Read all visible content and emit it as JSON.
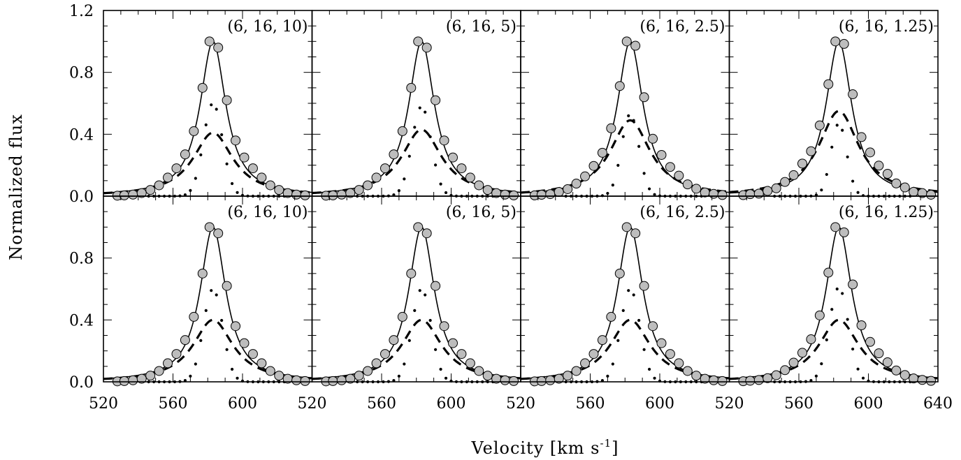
{
  "chart_data": {
    "type": "line",
    "layout": "2 rows x 4 columns of panels with shared axes",
    "xlabel": "Velocity [km s",
    "xlabel_superscript": "-1",
    "xlabel_suffix": "]",
    "ylabel": "Normalized flux",
    "xlim": [
      520,
      640
    ],
    "ylim": [
      0,
      1.2
    ],
    "x_tick_labels": [
      "520",
      "560",
      "600",
      "520",
      "560",
      "600",
      "520",
      "560",
      "600",
      "520",
      "560",
      "600",
      "640"
    ],
    "y_tick_labels_top": [
      "0.0",
      "0.4",
      "0.8",
      "1.2"
    ],
    "y_tick_labels_bottom": [
      "0.0",
      "0.4",
      "0.8"
    ],
    "marker_color": "#bdbdbd",
    "panels": [
      {
        "row": 0,
        "col": 0,
        "label": "(6, 16, 10)",
        "dashed_peak": 0.41,
        "dotted_peak": 0.6,
        "dotted_width": 5.5,
        "marker_offset": 0
      },
      {
        "row": 0,
        "col": 1,
        "label": "(6, 16, 5)",
        "dashed_peak": 0.43,
        "dotted_peak": 0.58,
        "dotted_width": 5.5,
        "marker_offset": 0
      },
      {
        "row": 0,
        "col": 2,
        "label": "(6, 16, 2.5)",
        "dashed_peak": 0.49,
        "dotted_peak": 0.53,
        "dotted_width": 5.0,
        "marker_offset": 0.02
      },
      {
        "row": 0,
        "col": 3,
        "label": "(6, 16, 1.25)",
        "dashed_peak": 0.55,
        "dotted_peak": 0.47,
        "dotted_width": 4.5,
        "marker_offset": 0.04
      },
      {
        "row": 1,
        "col": 0,
        "label": "(6, 16, 10)",
        "dashed_peak": 0.4,
        "dotted_peak": 0.6,
        "dotted_width": 5.5,
        "marker_offset": 0
      },
      {
        "row": 1,
        "col": 1,
        "label": "(6, 16, 5)",
        "dashed_peak": 0.4,
        "dotted_peak": 0.6,
        "dotted_width": 5.5,
        "marker_offset": 0
      },
      {
        "row": 1,
        "col": 2,
        "label": "(6, 16, 2.5)",
        "dashed_peak": 0.4,
        "dotted_peak": 0.6,
        "dotted_width": 5.5,
        "marker_offset": 0
      },
      {
        "row": 1,
        "col": 3,
        "label": "(6, 16, 1.25)",
        "dashed_peak": 0.4,
        "dotted_peak": 0.61,
        "dotted_width": 5.5,
        "marker_offset": 0.01
      }
    ],
    "series": [
      {
        "style": "open circles (data points)",
        "x": [
          528,
          532,
          537,
          542,
          547,
          552,
          557,
          562,
          567,
          572,
          577,
          581,
          586,
          591,
          596,
          601,
          606,
          611,
          616,
          621,
          626,
          631,
          636
        ],
        "y": [
          0.003,
          0.005,
          0.01,
          0.02,
          0.04,
          0.07,
          0.12,
          0.18,
          0.27,
          0.42,
          0.7,
          1.0,
          0.96,
          0.62,
          0.36,
          0.25,
          0.18,
          0.12,
          0.07,
          0.04,
          0.02,
          0.01,
          0.005
        ]
      },
      {
        "style": "solid line (total profile)",
        "peak": 1.0,
        "center": 583
      }
    ]
  }
}
